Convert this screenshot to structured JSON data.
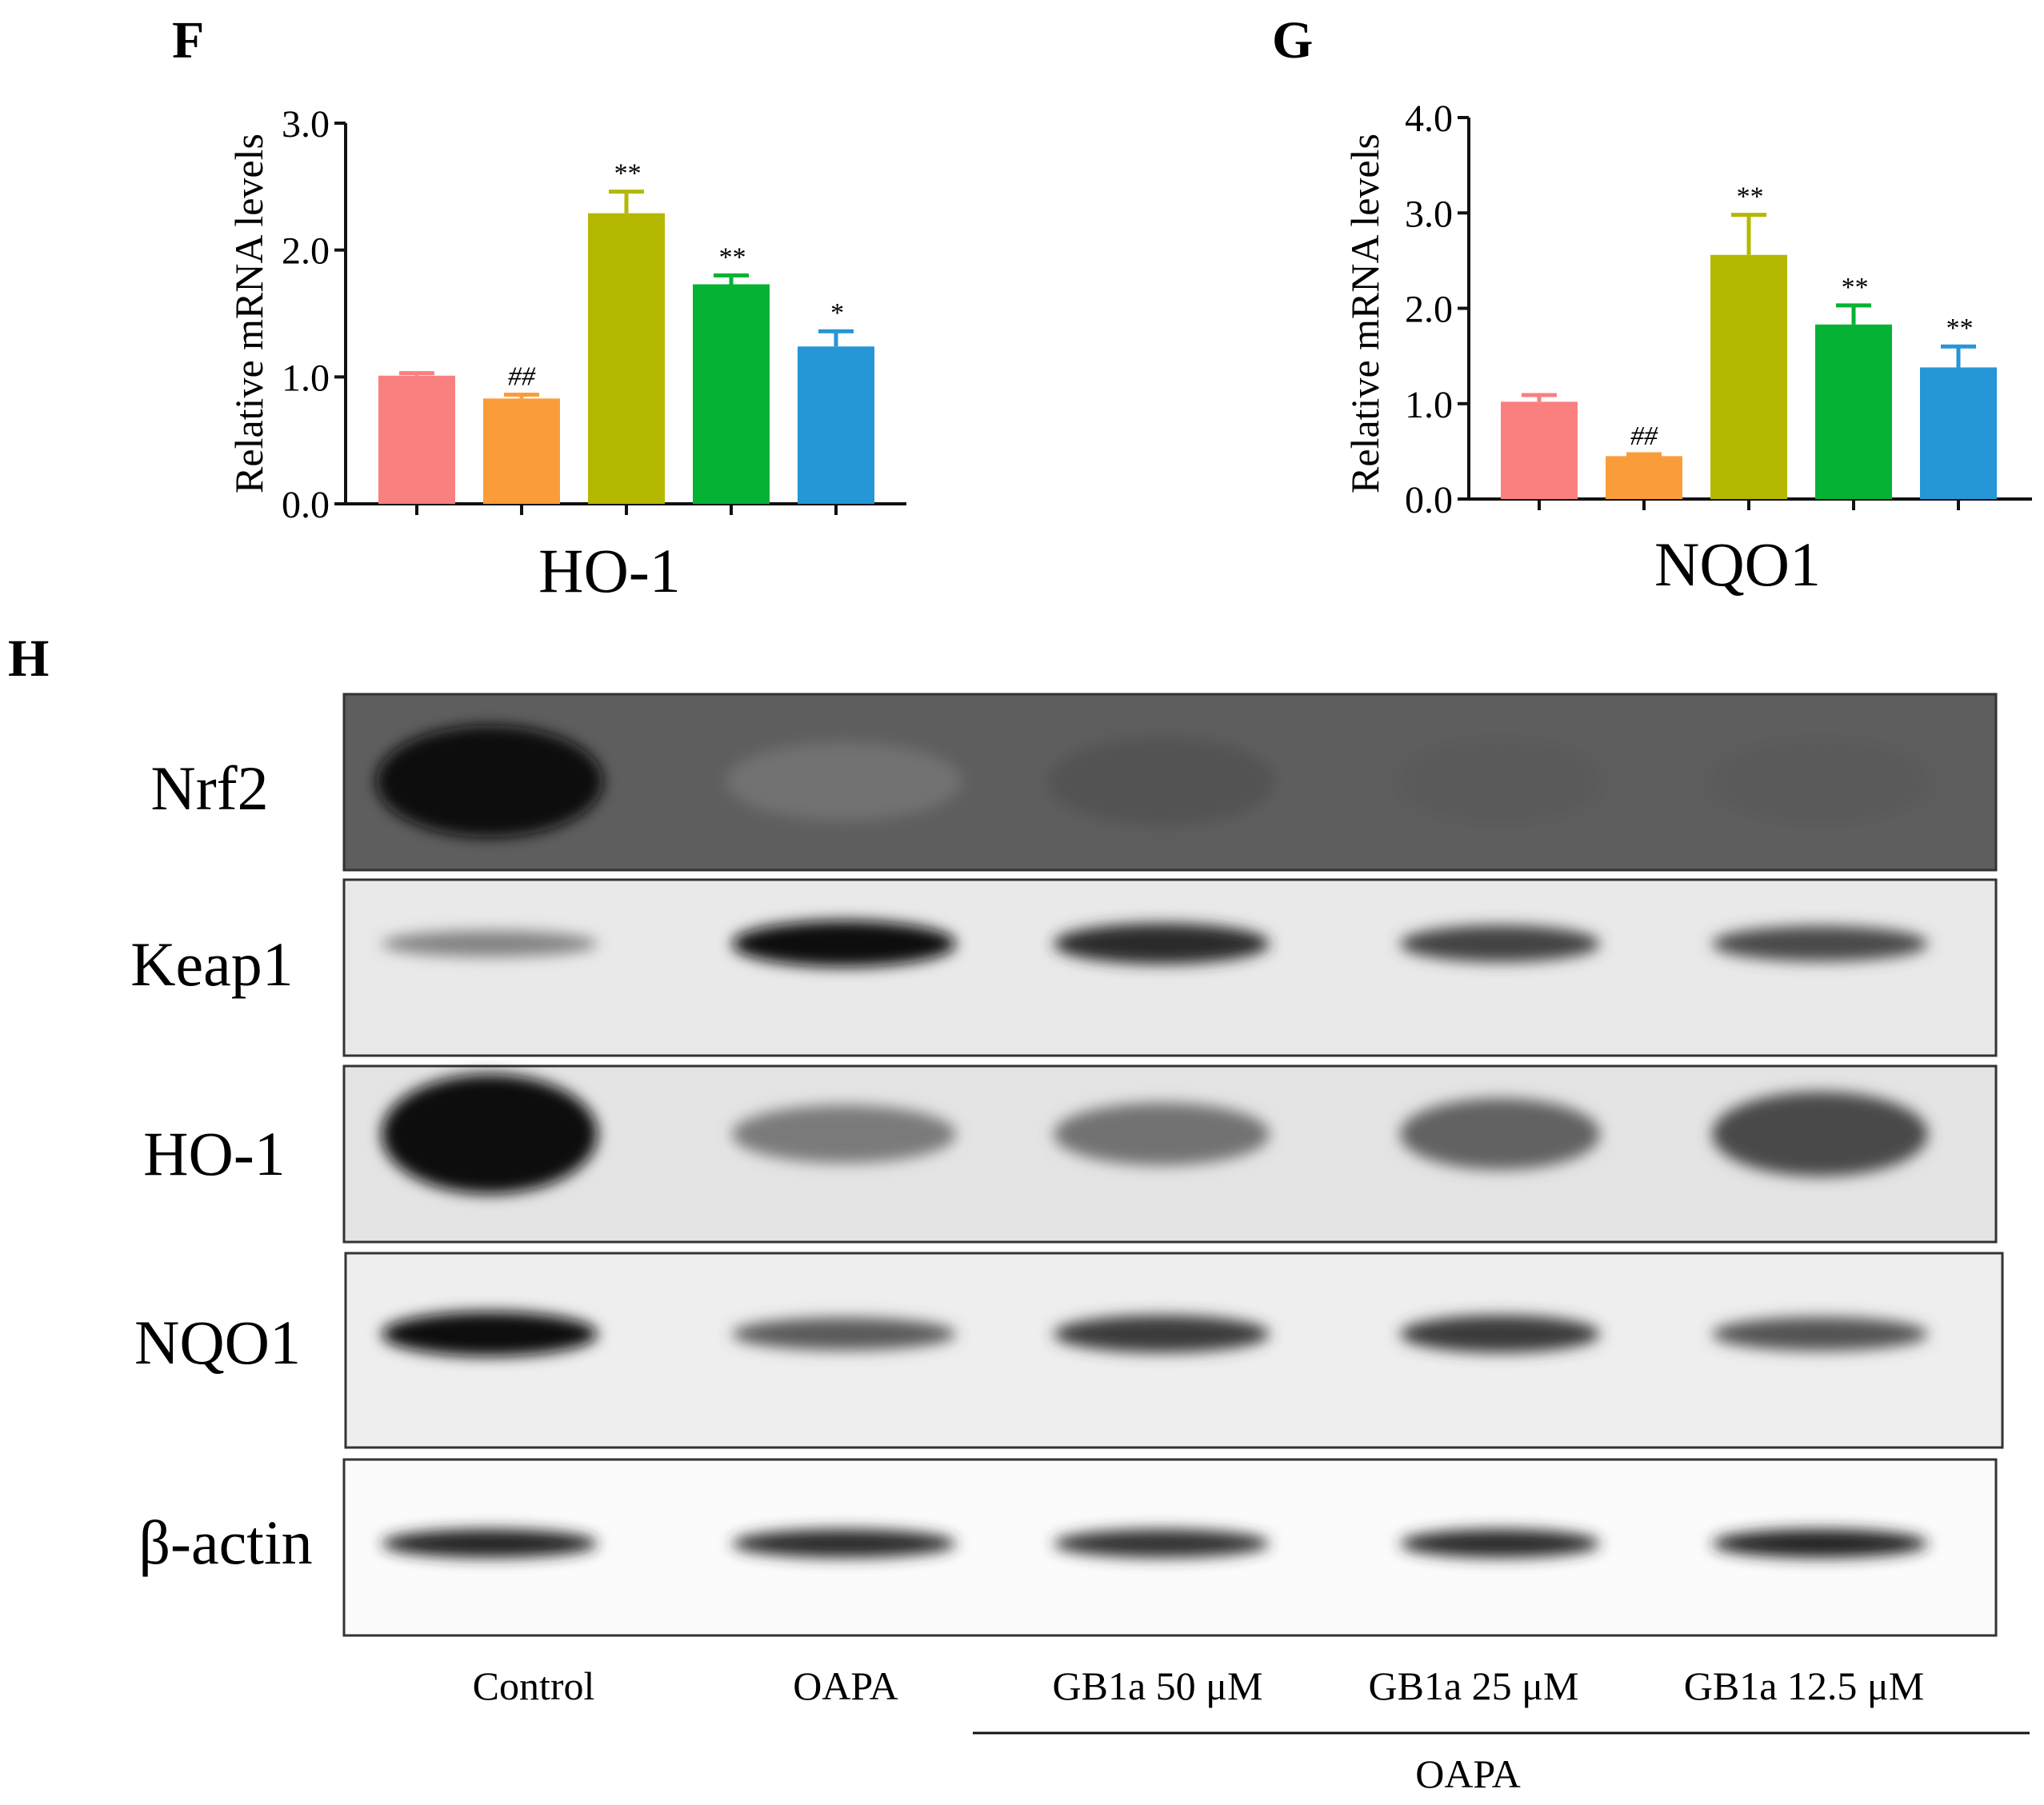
{
  "panel_letters": {
    "f": "F",
    "g": "G",
    "h": "H"
  },
  "chart_data": [
    {
      "type": "bar",
      "panel": "F",
      "title": "",
      "xlabel": "HO-1",
      "ylabel": "Relative mRNA levels",
      "ylim": [
        0,
        3.0
      ],
      "yticks": [
        "0.0",
        "1.0",
        "2.0",
        "3.0"
      ],
      "categories": [
        "Control",
        "OAPA",
        "GB1a 50 μM",
        "GB1a 25 μM",
        "GB1a 12.5 μM"
      ],
      "values": [
        1.01,
        0.83,
        2.29,
        1.73,
        1.24
      ],
      "errors": [
        0.02,
        0.03,
        0.17,
        0.07,
        0.12
      ],
      "annotations": [
        "",
        "##",
        "**",
        "**",
        "*"
      ],
      "colors": [
        "#fa7f7f",
        "#fb9c3b",
        "#b5b800",
        "#05b233",
        "#2596d6"
      ],
      "grid": false
    },
    {
      "type": "bar",
      "panel": "G",
      "title": "",
      "xlabel": "NQO1",
      "ylabel": "Relative mRNA levels",
      "ylim": [
        0,
        4.0
      ],
      "yticks": [
        "0.0",
        "1.0",
        "2.0",
        "3.0",
        "4.0"
      ],
      "categories": [
        "Control",
        "OAPA",
        "GB1a 50 μM",
        "GB1a 25 μM",
        "GB1a 12.5 μM"
      ],
      "values": [
        1.02,
        0.45,
        2.56,
        1.83,
        1.38
      ],
      "errors": [
        0.07,
        0.02,
        0.42,
        0.2,
        0.22
      ],
      "annotations": [
        "",
        "##",
        "**",
        "**",
        "**"
      ],
      "colors": [
        "#fa7f7f",
        "#fb9c3b",
        "#b5b800",
        "#05b233",
        "#2596d6"
      ],
      "grid": false
    }
  ],
  "blot": {
    "rows": [
      {
        "label": "Nrf2",
        "intensity": [
          1.0,
          0.35,
          0.55,
          0.5,
          0.5
        ]
      },
      {
        "label": "Keap1",
        "intensity": [
          0.25,
          1.0,
          0.8,
          0.65,
          0.6
        ]
      },
      {
        "label": "HO-1",
        "intensity": [
          1.0,
          0.3,
          0.35,
          0.45,
          0.6
        ]
      },
      {
        "label": "NQO1",
        "intensity": [
          1.0,
          0.5,
          0.7,
          0.7,
          0.55
        ]
      },
      {
        "label": "β-actin",
        "intensity": [
          0.85,
          0.8,
          0.75,
          0.8,
          0.85
        ]
      }
    ],
    "lanes": [
      "Control",
      "OAPA",
      "GB1a 50 μM",
      "GB1a 25 μM",
      "GB1a 12.5 μM"
    ],
    "group_label": "OAPA"
  }
}
